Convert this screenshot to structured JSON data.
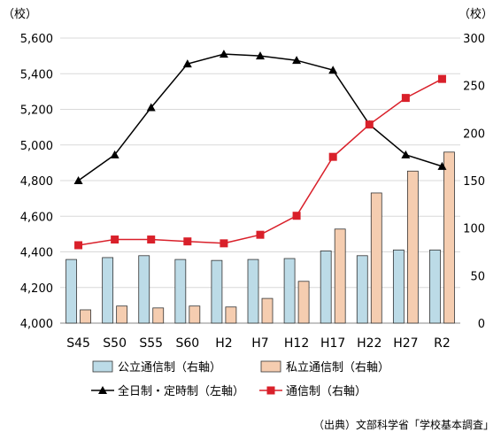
{
  "chart_data": {
    "type": "bar",
    "categories": [
      "S45",
      "S50",
      "S55",
      "S60",
      "H2",
      "H7",
      "H12",
      "H17",
      "H22",
      "H27",
      "R2"
    ],
    "left_axis": {
      "unit": "（校）",
      "ylim": [
        4000,
        5600
      ],
      "ticks": [
        "4,000",
        "4,200",
        "4,400",
        "4,600",
        "4,800",
        "5,000",
        "5,200",
        "5,400",
        "5,600"
      ]
    },
    "right_axis": {
      "unit": "（校）",
      "ylim": [
        0,
        300
      ],
      "ticks": [
        "0",
        "50",
        "100",
        "150",
        "200",
        "250",
        "300"
      ]
    },
    "series": [
      {
        "name": "公立通信制（右軸）",
        "kind": "bar",
        "axis": "right",
        "color": "#bcdbe7",
        "values": [
          67,
          69,
          71,
          67,
          66,
          67,
          68,
          76,
          71,
          77,
          77
        ]
      },
      {
        "name": "私立通信制（右軸）",
        "kind": "bar",
        "axis": "right",
        "color": "#f5cdb0",
        "values": [
          14,
          18,
          16,
          18,
          17,
          26,
          44,
          99,
          137,
          160,
          180
        ]
      },
      {
        "name": "全日制・定時制（左軸）",
        "kind": "line",
        "axis": "left",
        "color": "#000000",
        "marker": "triangle",
        "values": [
          4800,
          4945,
          5210,
          5455,
          5510,
          5500,
          5475,
          5420,
          5115,
          4945,
          4880
        ]
      },
      {
        "name": "通信制（右軸）",
        "kind": "line",
        "axis": "right",
        "color": "#d9202a",
        "marker": "square",
        "values": [
          82,
          88,
          88,
          86,
          84,
          93,
          113,
          175,
          209,
          237,
          257
        ]
      }
    ],
    "grid": "horizontal",
    "legend": "bottom",
    "source": "（出典）文部科学省「学校基本調査」"
  }
}
